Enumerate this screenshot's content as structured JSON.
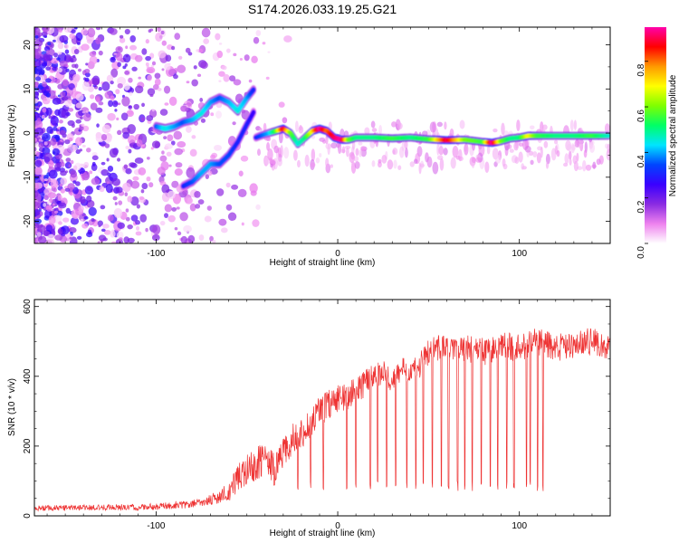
{
  "title": "S174.2026.033.19.25.G21",
  "chart_data": [
    {
      "type": "heatmap",
      "xlabel": "Height of straight line (km)",
      "ylabel": "Frequency (Hz)",
      "xlim": [
        -167,
        150
      ],
      "ylim": [
        -25,
        24
      ],
      "xticks": [
        -100,
        0,
        100
      ],
      "yticks": [
        -20,
        -10,
        0,
        10,
        20
      ],
      "colorbar": {
        "label": "Normalized spectral amplitude",
        "range": [
          0,
          0.95
        ],
        "ticks": [
          "0.0",
          "0.2",
          "0.4",
          "0.6",
          "0.8"
        ],
        "tick_values": [
          0,
          0.2,
          0.4,
          0.6,
          0.8
        ],
        "colors": [
          "#ffffff",
          "#ee82ee",
          "#8a2be2",
          "#3a00ff",
          "#0044ff",
          "#00e5ff",
          "#00ff66",
          "#7fff00",
          "#ffff00",
          "#ff9900",
          "#ff0000",
          "#ff00aa"
        ]
      },
      "main_ridge": {
        "x": [
          -45,
          -42,
          -38,
          -34,
          -30,
          -26,
          -22,
          -18,
          -14,
          -10,
          -6,
          -2,
          2,
          6,
          10,
          20,
          30,
          40,
          50,
          60,
          70,
          80,
          85,
          90,
          95,
          100,
          105,
          110,
          120,
          130,
          140,
          150
        ],
        "y": [
          -1,
          -0.5,
          0,
          0.5,
          1,
          0,
          -2.5,
          -1,
          0.5,
          1,
          0.5,
          -1,
          -1.5,
          -1.5,
          -1,
          -1,
          -1.2,
          -1,
          -1.4,
          -1.6,
          -1.5,
          -2,
          -2.2,
          -1.8,
          -1.2,
          -1,
          -0.6,
          -0.6,
          -0.6,
          -0.6,
          -0.6,
          -0.6
        ],
        "amplitude": [
          0.3,
          0.35,
          0.4,
          0.55,
          0.9,
          0.6,
          0.45,
          0.5,
          0.7,
          0.95,
          0.8,
          0.9,
          0.95,
          0.6,
          0.5,
          0.5,
          0.55,
          0.5,
          0.55,
          0.9,
          0.6,
          0.55,
          0.95,
          0.6,
          0.5,
          0.5,
          0.7,
          0.55,
          0.5,
          0.5,
          0.55,
          0.45
        ]
      },
      "upper_ridge": {
        "x": [
          -100,
          -95,
          -90,
          -85,
          -80,
          -75,
          -70,
          -65,
          -60,
          -55,
          -50,
          -46
        ],
        "y": [
          1.5,
          1,
          1.5,
          2.5,
          3,
          4.5,
          7,
          8,
          7,
          5,
          8,
          10
        ],
        "amplitude": [
          0.35,
          0.45,
          0.4,
          0.35,
          0.4,
          0.45,
          0.4,
          0.35,
          0.4,
          0.45,
          0.4,
          0.3
        ]
      },
      "lower_ridge": {
        "x": [
          -85,
          -80,
          -75,
          -70,
          -65,
          -60,
          -55,
          -50,
          -46
        ],
        "y": [
          -12,
          -11,
          -9,
          -7,
          -7,
          -5,
          -2,
          2,
          5
        ],
        "amplitude": [
          0.3,
          0.35,
          0.4,
          0.4,
          0.35,
          0.35,
          0.3,
          0.3,
          0.25
        ]
      }
    },
    {
      "type": "line",
      "xlabel": "Height of straight line (km)",
      "ylabel": "SNR (10 * v/v)",
      "xlim": [
        -167,
        150
      ],
      "ylim": [
        0,
        620
      ],
      "xticks": [
        -100,
        0,
        100
      ],
      "yticks": [
        0,
        200,
        400,
        600
      ],
      "color": "#ee3333",
      "envelope": {
        "x": [
          -167,
          -130,
          -100,
          -80,
          -70,
          -60,
          -55,
          -50,
          -45,
          -40,
          -35,
          -30,
          -25,
          -20,
          -15,
          -10,
          -5,
          0,
          5,
          10,
          15,
          20,
          25,
          30,
          35,
          40,
          45,
          50,
          55,
          60,
          70,
          80,
          90,
          100,
          110,
          120,
          130,
          140,
          150
        ],
        "mean": [
          22,
          24,
          26,
          35,
          45,
          70,
          110,
          130,
          150,
          160,
          140,
          180,
          220,
          230,
          270,
          300,
          320,
          330,
          340,
          360,
          380,
          400,
          410,
          390,
          420,
          410,
          430,
          470,
          480,
          490,
          480,
          470,
          490,
          480,
          500,
          480,
          490,
          500,
          480
        ],
        "noise": [
          8,
          8,
          10,
          12,
          15,
          30,
          40,
          45,
          50,
          45,
          45,
          45,
          45,
          45,
          45,
          45,
          45,
          45,
          40,
          40,
          40,
          35,
          35,
          35,
          35,
          35,
          35,
          40,
          40,
          40,
          40,
          40,
          40,
          40,
          40,
          40,
          40,
          40,
          40
        ]
      },
      "dropouts": [
        -35,
        -22,
        -15,
        -8,
        5,
        10,
        18,
        22,
        27,
        32,
        38,
        43,
        47,
        52,
        57,
        61,
        66,
        70,
        74,
        79,
        84,
        88,
        93,
        97,
        104,
        106,
        110,
        113
      ]
    }
  ]
}
